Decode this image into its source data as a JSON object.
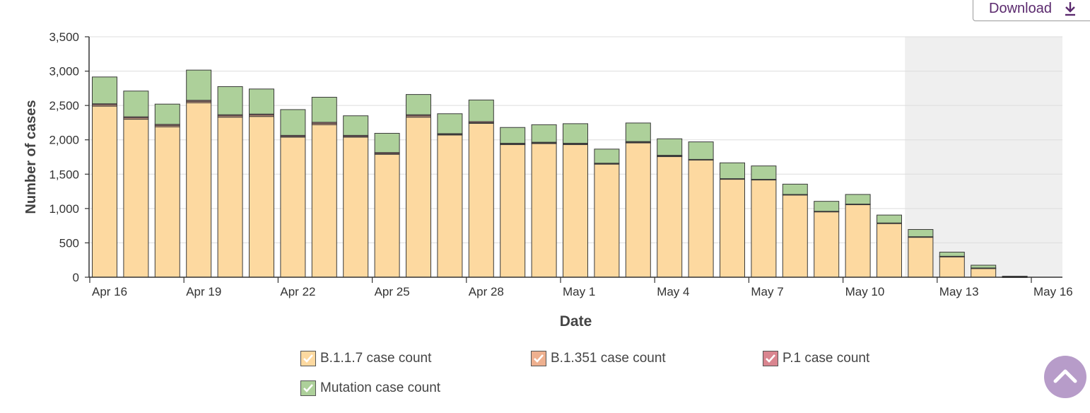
{
  "download": {
    "label": "Download",
    "icon": "download-icon"
  },
  "colors": {
    "b117": "#fdd9a0",
    "b1351": "#eeb08f",
    "p1": "#d9858f",
    "mutation": "#add09a",
    "shade": "#efefef",
    "outline": "#3a3a3a",
    "accent": "#5b2a6e",
    "scroll_btn": "#b79cc9"
  },
  "chart_data": {
    "type": "bar",
    "stacked": true,
    "xlabel": "Date",
    "ylabel": "Number of cases",
    "ylim": [
      0,
      3500
    ],
    "yticks": [
      0,
      500,
      1000,
      1500,
      2000,
      2500,
      3000,
      3500
    ],
    "ytick_labels": [
      "0",
      "500",
      "1,000",
      "1,500",
      "2,000",
      "2,500",
      "3,000",
      "3,500"
    ],
    "x_tick_labels": [
      "Apr 16",
      "Apr 19",
      "Apr 22",
      "Apr 25",
      "Apr 28",
      "May 1",
      "May 4",
      "May 7",
      "May 10",
      "May 13",
      "May 16"
    ],
    "grid": true,
    "shaded_region_start": "May 12",
    "categories": [
      "Apr 16",
      "Apr 17",
      "Apr 18",
      "Apr 19",
      "Apr 20",
      "Apr 21",
      "Apr 22",
      "Apr 23",
      "Apr 24",
      "Apr 25",
      "Apr 26",
      "Apr 27",
      "Apr 28",
      "Apr 29",
      "Apr 30",
      "May 1",
      "May 2",
      "May 3",
      "May 4",
      "May 5",
      "May 6",
      "May 7",
      "May 8",
      "May 9",
      "May 10",
      "May 11",
      "May 12",
      "May 13",
      "May 14",
      "May 15"
    ],
    "series": [
      {
        "name": "B.1.1.7 case count",
        "key": "b117",
        "values": [
          2490,
          2300,
          2190,
          2540,
          2330,
          2340,
          2040,
          2220,
          2040,
          1790,
          2330,
          2070,
          2240,
          1930,
          1950,
          1935,
          1650,
          1960,
          1760,
          1710,
          1430,
          1420,
          1200,
          955,
          1060,
          785,
          585,
          300,
          130,
          5
        ]
      },
      {
        "name": "B.1.351 case count",
        "key": "b1351",
        "values": [
          20,
          20,
          20,
          20,
          20,
          20,
          10,
          20,
          10,
          10,
          20,
          10,
          10,
          10,
          5,
          5,
          5,
          5,
          5,
          0,
          0,
          0,
          0,
          0,
          0,
          0,
          0,
          0,
          0,
          0
        ]
      },
      {
        "name": "P.1 case count",
        "key": "p1",
        "values": [
          15,
          15,
          15,
          15,
          15,
          15,
          15,
          15,
          15,
          15,
          15,
          10,
          15,
          10,
          10,
          10,
          5,
          10,
          10,
          5,
          5,
          5,
          5,
          5,
          5,
          5,
          5,
          5,
          5,
          0
        ]
      },
      {
        "name": "Mutation case count",
        "key": "mutation",
        "values": [
          390,
          375,
          295,
          440,
          410,
          365,
          375,
          365,
          285,
          280,
          295,
          290,
          315,
          230,
          255,
          285,
          205,
          270,
          240,
          255,
          230,
          195,
          150,
          145,
          140,
          115,
          105,
          60,
          40,
          10
        ]
      }
    ]
  },
  "legend": [
    {
      "label": "B.1.1.7 case count",
      "key": "b117"
    },
    {
      "label": "B.1.351 case count",
      "key": "b1351"
    },
    {
      "label": "P.1 case count",
      "key": "p1"
    },
    {
      "label": "Mutation case count",
      "key": "mutation"
    }
  ]
}
